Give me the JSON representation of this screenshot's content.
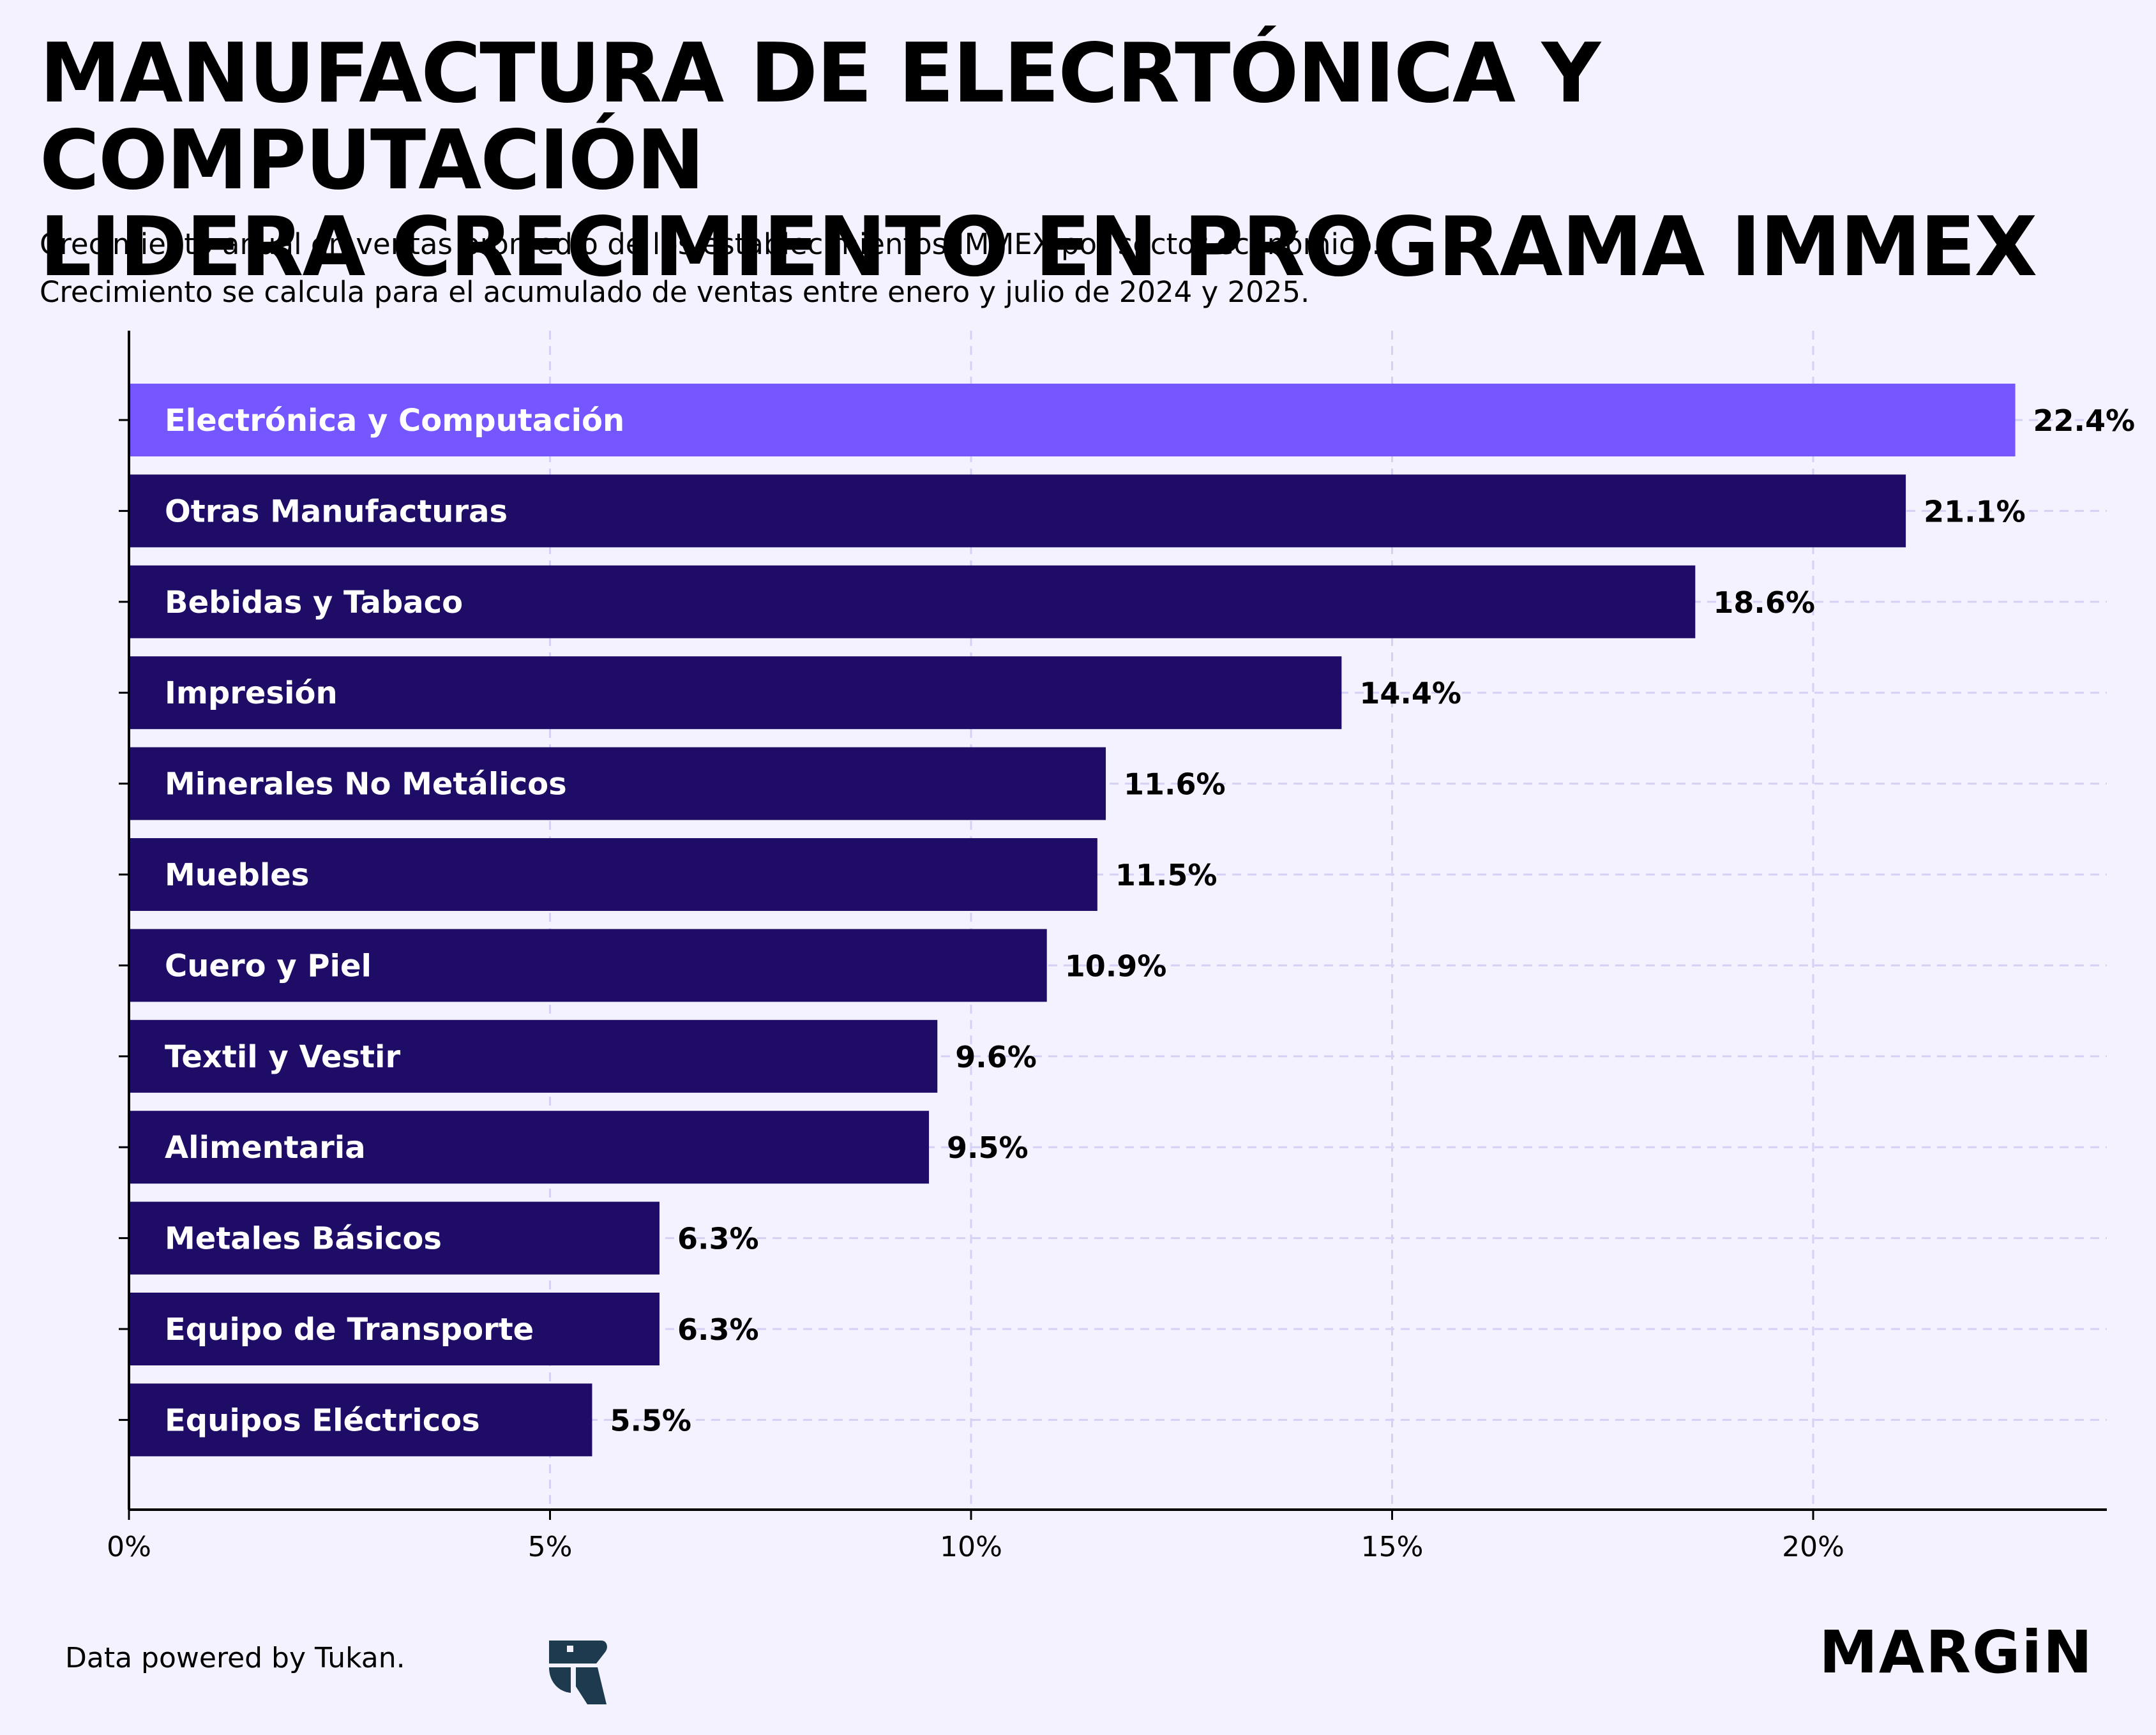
{
  "header": {
    "title_line1": "MANUFACTURA DE ELECRTÓNICA Y COMPUTACIÓN",
    "title_line2": "LIDERA CRECIMIENTO EN PROGRAMA IMMEX",
    "subtitle_line1": "Crecimiento anual en ventas promedio de los establecimientos IMMEX por sector económico.",
    "subtitle_line2": "Crecimiento se calcula para el acumulado de ventas entre enero y julio de 2024 y 2025."
  },
  "footer": {
    "source": "Data powered by Tukan.",
    "source_logo_icon": "tukan-logo-icon",
    "brand": "MARGiN"
  },
  "chart_data": {
    "type": "bar",
    "orientation": "horizontal",
    "categories": [
      "Electrónica y Computación",
      "Otras Manufacturas",
      "Bebidas y Tabaco",
      "Impresión",
      "Minerales No Metálicos",
      "Muebles",
      "Cuero y Piel",
      "Textil y Vestir",
      "Alimentaria",
      "Metales Básicos",
      "Equipo de Transporte",
      "Equipos Eléctricos"
    ],
    "values": [
      22.4,
      21.1,
      18.6,
      14.4,
      11.6,
      11.5,
      10.9,
      9.6,
      9.5,
      6.3,
      6.3,
      5.5
    ],
    "value_labels": [
      "22.4%",
      "21.1%",
      "18.6%",
      "14.4%",
      "11.6%",
      "11.5%",
      "10.9%",
      "9.6%",
      "9.5%",
      "6.3%",
      "6.3%",
      "5.5%"
    ],
    "highlight_index": 0,
    "x_ticks": [
      0,
      5,
      10,
      15,
      20
    ],
    "x_tick_labels": [
      "0%",
      "5%",
      "10%",
      "15%",
      "20%"
    ],
    "xlim": [
      0,
      23.5
    ],
    "grid": true,
    "grid_style": "dashed",
    "colors": {
      "bar": "#1f0c66",
      "highlight": "#7657ff",
      "bar_label": "#ffffff",
      "value_label": "#000000",
      "grid": "#d4d1f5",
      "axis": "#000000",
      "background": "#f3f2fe"
    }
  }
}
